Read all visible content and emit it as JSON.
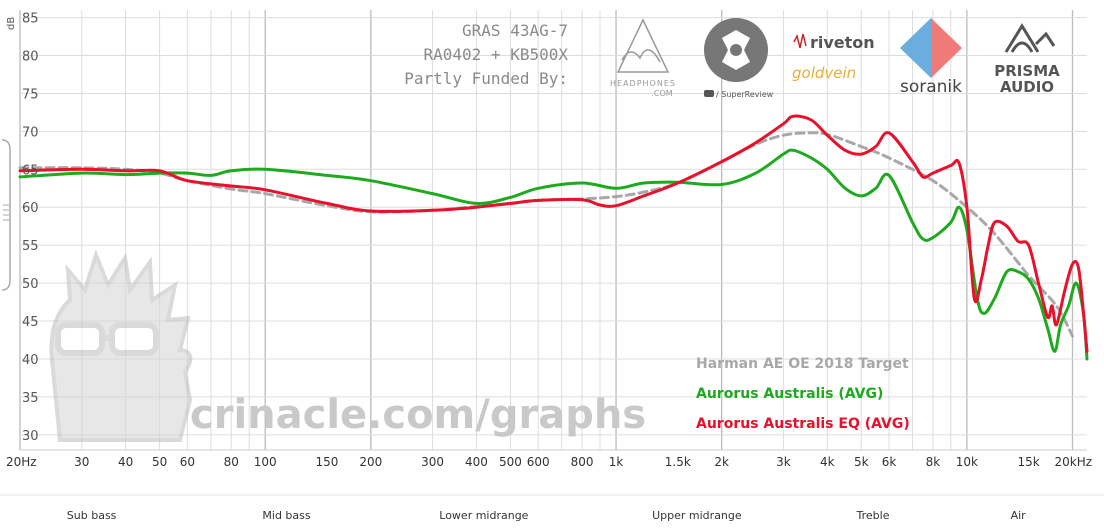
{
  "measurement": {
    "rig_line1": "GRAS 43AG-7",
    "rig_line2": "RA0402 + KB500X",
    "funded_by": "Partly Funded By:"
  },
  "sponsors": {
    "headphones_line1": "HEADPHONES",
    "headphones_line2": ".COM",
    "superreview": "/ SuperReview",
    "riveton": "riveton",
    "goldvein": "goldvein",
    "soranik": "soranik",
    "prisma_line1": "PRISMA",
    "prisma_line2": "AUDIO"
  },
  "watermark": {
    "text": "crinacle.com/graphs"
  },
  "colors": {
    "target": "#a8a8a8",
    "avg": "#1eaa1e",
    "eq": "#e8102a",
    "grid": "#dddddd",
    "grid_major": "#bbbbbb"
  },
  "bands": [
    {
      "label": "Sub bass",
      "center_hz": 32
    },
    {
      "label": "Mid bass",
      "center_hz": 115
    },
    {
      "label": "Lower midrange",
      "center_hz": 420
    },
    {
      "label": "Upper midrange",
      "center_hz": 1700
    },
    {
      "label": "Treble",
      "center_hz": 5400
    },
    {
      "label": "Air",
      "center_hz": 14000
    }
  ],
  "chart_data": {
    "type": "line",
    "title": "",
    "xlabel": "",
    "ylabel": "dB",
    "x_scale": "log",
    "xlim": [
      20,
      22000
    ],
    "ylim": [
      28,
      86
    ],
    "grid": true,
    "legend_position": "bottom-right",
    "x_ticks": [
      {
        "value": 20,
        "label": "20Hz"
      },
      {
        "value": 30,
        "label": "30"
      },
      {
        "value": 40,
        "label": "40"
      },
      {
        "value": 50,
        "label": "50"
      },
      {
        "value": 60,
        "label": "60"
      },
      {
        "value": 80,
        "label": "80"
      },
      {
        "value": 100,
        "label": "100"
      },
      {
        "value": 150,
        "label": "150"
      },
      {
        "value": 200,
        "label": "200"
      },
      {
        "value": 300,
        "label": "300"
      },
      {
        "value": 400,
        "label": "400"
      },
      {
        "value": 500,
        "label": "500"
      },
      {
        "value": 600,
        "label": "600"
      },
      {
        "value": 800,
        "label": "800"
      },
      {
        "value": 1000,
        "label": "1k"
      },
      {
        "value": 1500,
        "label": "1.5k"
      },
      {
        "value": 2000,
        "label": "2k"
      },
      {
        "value": 3000,
        "label": "3k"
      },
      {
        "value": 4000,
        "label": "4k"
      },
      {
        "value": 5000,
        "label": "5k"
      },
      {
        "value": 6000,
        "label": "6k"
      },
      {
        "value": 8000,
        "label": "8k"
      },
      {
        "value": 10000,
        "label": "10k"
      },
      {
        "value": 15000,
        "label": "15k"
      },
      {
        "value": 20000,
        "label": "20kHz"
      }
    ],
    "y_ticks": [
      {
        "value": 85,
        "label": "85"
      },
      {
        "value": 80,
        "label": "80"
      },
      {
        "value": 75,
        "label": "75"
      },
      {
        "value": 70,
        "label": "70"
      },
      {
        "value": 65,
        "label": "65"
      },
      {
        "value": 60,
        "label": "60"
      },
      {
        "value": 55,
        "label": "55"
      },
      {
        "value": 50,
        "label": "50"
      },
      {
        "value": 45,
        "label": "45"
      },
      {
        "value": 40,
        "label": "40"
      },
      {
        "value": 35,
        "label": "35"
      },
      {
        "value": 30,
        "label": "30"
      }
    ],
    "series": [
      {
        "name": "Harman AE OE 2018 Target",
        "style": "dashed",
        "points": [
          [
            20,
            65.2
          ],
          [
            30,
            65.2
          ],
          [
            40,
            65
          ],
          [
            50,
            64.5
          ],
          [
            60,
            63.5
          ],
          [
            80,
            62.4
          ],
          [
            100,
            61.8
          ],
          [
            150,
            60.2
          ],
          [
            200,
            59.4
          ],
          [
            300,
            59.6
          ],
          [
            400,
            60.1
          ],
          [
            500,
            60.5
          ],
          [
            600,
            60.9
          ],
          [
            800,
            61.1
          ],
          [
            1000,
            61.4
          ],
          [
            1200,
            62
          ],
          [
            1500,
            63.2
          ],
          [
            2000,
            66
          ],
          [
            2500,
            68.3
          ],
          [
            3000,
            69.5
          ],
          [
            3500,
            69.8
          ],
          [
            4000,
            69.6
          ],
          [
            5000,
            68
          ],
          [
            6000,
            66.5
          ],
          [
            8000,
            63.5
          ],
          [
            10000,
            60
          ],
          [
            12000,
            56.5
          ],
          [
            15000,
            51
          ],
          [
            18000,
            47
          ],
          [
            20000,
            43
          ]
        ]
      },
      {
        "name": "Aurorus Australis (AVG)",
        "style": "solid",
        "points": [
          [
            20,
            64
          ],
          [
            30,
            64.5
          ],
          [
            40,
            64.3
          ],
          [
            50,
            64.5
          ],
          [
            60,
            64.5
          ],
          [
            70,
            64.2
          ],
          [
            80,
            64.8
          ],
          [
            100,
            65
          ],
          [
            150,
            64.2
          ],
          [
            200,
            63.5
          ],
          [
            300,
            61.8
          ],
          [
            400,
            60.5
          ],
          [
            500,
            61.3
          ],
          [
            600,
            62.5
          ],
          [
            800,
            63.2
          ],
          [
            1000,
            62.5
          ],
          [
            1200,
            63.2
          ],
          [
            1500,
            63.3
          ],
          [
            2000,
            63
          ],
          [
            2500,
            64.5
          ],
          [
            3000,
            67
          ],
          [
            3200,
            67.5
          ],
          [
            3600,
            66.5
          ],
          [
            4000,
            65
          ],
          [
            4500,
            62.5
          ],
          [
            5000,
            61.5
          ],
          [
            5500,
            62.5
          ],
          [
            6000,
            64.2
          ],
          [
            7000,
            58
          ],
          [
            7500,
            55.8
          ],
          [
            8000,
            56
          ],
          [
            9000,
            58
          ],
          [
            9500,
            60
          ],
          [
            10000,
            57
          ],
          [
            10700,
            48
          ],
          [
            11200,
            46
          ],
          [
            12000,
            48
          ],
          [
            13000,
            51.5
          ],
          [
            14000,
            51.5
          ],
          [
            15000,
            50.5
          ],
          [
            16000,
            48
          ],
          [
            17000,
            44
          ],
          [
            17800,
            41
          ],
          [
            18500,
            44.5
          ],
          [
            19500,
            47
          ],
          [
            20500,
            50
          ],
          [
            21500,
            46
          ],
          [
            22000,
            40
          ]
        ]
      },
      {
        "name": "Aurorus Australis EQ (AVG)",
        "style": "solid",
        "points": [
          [
            20,
            64.8
          ],
          [
            30,
            65
          ],
          [
            40,
            64.8
          ],
          [
            50,
            64.8
          ],
          [
            60,
            63.5
          ],
          [
            80,
            62.8
          ],
          [
            100,
            62.3
          ],
          [
            150,
            60.5
          ],
          [
            200,
            59.5
          ],
          [
            300,
            59.6
          ],
          [
            400,
            60
          ],
          [
            500,
            60.5
          ],
          [
            600,
            60.9
          ],
          [
            800,
            61
          ],
          [
            900,
            60.3
          ],
          [
            1000,
            60.2
          ],
          [
            1200,
            61.5
          ],
          [
            1500,
            63.2
          ],
          [
            2000,
            66
          ],
          [
            2500,
            68.5
          ],
          [
            3000,
            71
          ],
          [
            3200,
            72
          ],
          [
            3600,
            71.5
          ],
          [
            4000,
            69.5
          ],
          [
            4500,
            67.5
          ],
          [
            5000,
            67
          ],
          [
            5500,
            68
          ],
          [
            6000,
            69.8
          ],
          [
            7000,
            66
          ],
          [
            7500,
            64
          ],
          [
            8000,
            64.5
          ],
          [
            9000,
            65.5
          ],
          [
            9500,
            65.8
          ],
          [
            10000,
            60
          ],
          [
            10500,
            48
          ],
          [
            11000,
            50.5
          ],
          [
            11500,
            55
          ],
          [
            12000,
            58
          ],
          [
            13000,
            57.5
          ],
          [
            14000,
            55.5
          ],
          [
            15000,
            55
          ],
          [
            16000,
            50
          ],
          [
            17000,
            45.5
          ],
          [
            17500,
            47
          ],
          [
            18000,
            44.5
          ],
          [
            19000,
            49
          ],
          [
            20000,
            52.5
          ],
          [
            20800,
            52
          ],
          [
            21500,
            46
          ],
          [
            22000,
            41
          ]
        ]
      }
    ]
  }
}
